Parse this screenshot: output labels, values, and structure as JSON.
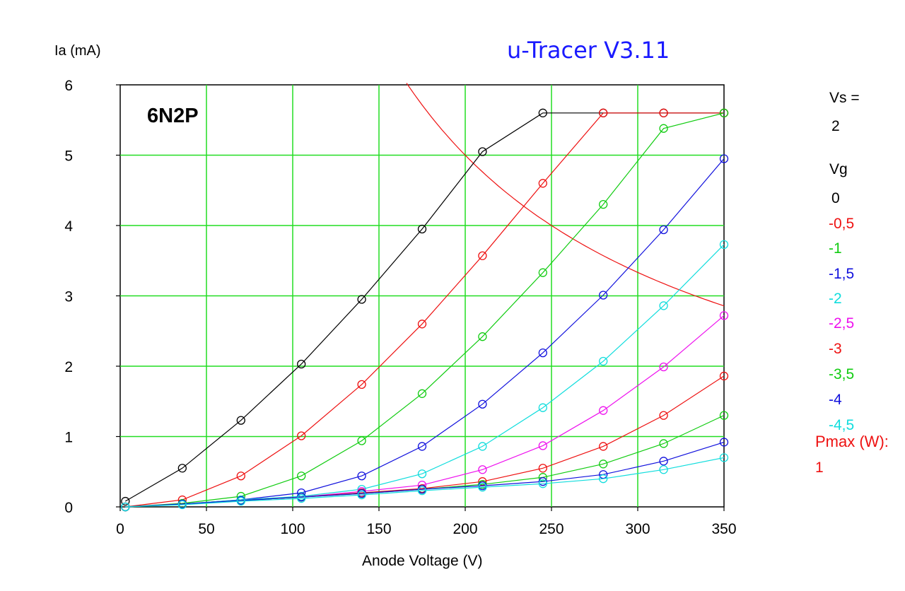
{
  "chart_data": {
    "type": "line",
    "title": "u-Tracer V3.11",
    "title_color": "#1a1aff",
    "tube_label": "6N2P",
    "xlabel": "Anode Voltage (V)",
    "ylabel": "Ia (mA)",
    "xlim": [
      0,
      350
    ],
    "ylim": [
      0,
      6
    ],
    "x_ticks": [
      "0",
      "50",
      "100",
      "150",
      "200",
      "250",
      "300",
      "350"
    ],
    "y_ticks": [
      "0",
      "1",
      "2",
      "3",
      "4",
      "5",
      "6"
    ],
    "grid": true,
    "grid_color": "#22dd22",
    "vs_label": "Vs =",
    "vs_value": "2",
    "vg_label": "Vg",
    "series": [
      {
        "name": "0",
        "color": "#000000",
        "x": [
          3,
          36,
          70,
          105,
          140,
          175,
          210,
          245,
          280,
          315,
          350
        ],
        "y": [
          0.08,
          0.55,
          1.23,
          2.03,
          2.95,
          3.95,
          5.05,
          5.6,
          5.6,
          5.6,
          5.6
        ]
      },
      {
        "name": "-0,5",
        "color": "#ee1111",
        "x": [
          3,
          36,
          70,
          105,
          140,
          175,
          210,
          245,
          280,
          315,
          350
        ],
        "y": [
          0.0,
          0.1,
          0.44,
          1.01,
          1.74,
          2.6,
          3.57,
          4.6,
          5.6,
          5.6,
          5.6
        ]
      },
      {
        "name": "-1",
        "color": "#11cc11",
        "x": [
          3,
          36,
          70,
          105,
          140,
          175,
          210,
          245,
          280,
          315,
          350
        ],
        "y": [
          0.0,
          0.05,
          0.15,
          0.44,
          0.94,
          1.61,
          2.42,
          3.33,
          4.3,
          5.38,
          5.6
        ]
      },
      {
        "name": "-1,5",
        "color": "#1111dd",
        "x": [
          3,
          36,
          70,
          105,
          140,
          175,
          210,
          245,
          280,
          315,
          350
        ],
        "y": [
          0.0,
          0.04,
          0.1,
          0.2,
          0.44,
          0.86,
          1.46,
          2.19,
          3.01,
          3.94,
          4.95
        ]
      },
      {
        "name": "-2",
        "color": "#11dddd",
        "x": [
          3,
          36,
          70,
          105,
          140,
          175,
          210,
          245,
          280,
          315,
          350
        ],
        "y": [
          0.0,
          0.04,
          0.1,
          0.15,
          0.25,
          0.47,
          0.86,
          1.41,
          2.07,
          2.86,
          3.73
        ]
      },
      {
        "name": "-2,5",
        "color": "#ee11ee",
        "x": [
          3,
          36,
          70,
          105,
          140,
          175,
          210,
          245,
          280,
          315,
          350
        ],
        "y": [
          0.0,
          0.04,
          0.09,
          0.14,
          0.22,
          0.31,
          0.53,
          0.87,
          1.37,
          1.99,
          2.72
        ]
      },
      {
        "name": "-3",
        "color": "#ee1111",
        "x": [
          3,
          36,
          70,
          105,
          140,
          175,
          210,
          245,
          280,
          315,
          350
        ],
        "y": [
          0.0,
          0.04,
          0.09,
          0.14,
          0.2,
          0.26,
          0.36,
          0.55,
          0.86,
          1.3,
          1.86
        ]
      },
      {
        "name": "-3,5",
        "color": "#11cc11",
        "x": [
          3,
          36,
          70,
          105,
          140,
          175,
          210,
          245,
          280,
          315,
          350
        ],
        "y": [
          0.0,
          0.04,
          0.09,
          0.14,
          0.19,
          0.25,
          0.32,
          0.42,
          0.61,
          0.9,
          1.3
        ]
      },
      {
        "name": "-4",
        "color": "#1111dd",
        "x": [
          3,
          36,
          70,
          105,
          140,
          175,
          210,
          245,
          280,
          315,
          350
        ],
        "y": [
          0.0,
          0.04,
          0.09,
          0.14,
          0.19,
          0.25,
          0.3,
          0.36,
          0.46,
          0.65,
          0.92
        ]
      },
      {
        "name": "-4,5",
        "color": "#11dddd",
        "x": [
          3,
          36,
          70,
          105,
          140,
          175,
          210,
          245,
          280,
          315,
          350
        ],
        "y": [
          0.0,
          0.03,
          0.08,
          0.12,
          0.17,
          0.23,
          0.28,
          0.33,
          0.4,
          0.53,
          0.7
        ]
      }
    ],
    "pmax_label": "Pmax (W):",
    "pmax_value": "1",
    "pmax_color": "#ee1111",
    "pmax_curve": {
      "watts": 1,
      "x_from": 166,
      "x_to": 350
    }
  }
}
